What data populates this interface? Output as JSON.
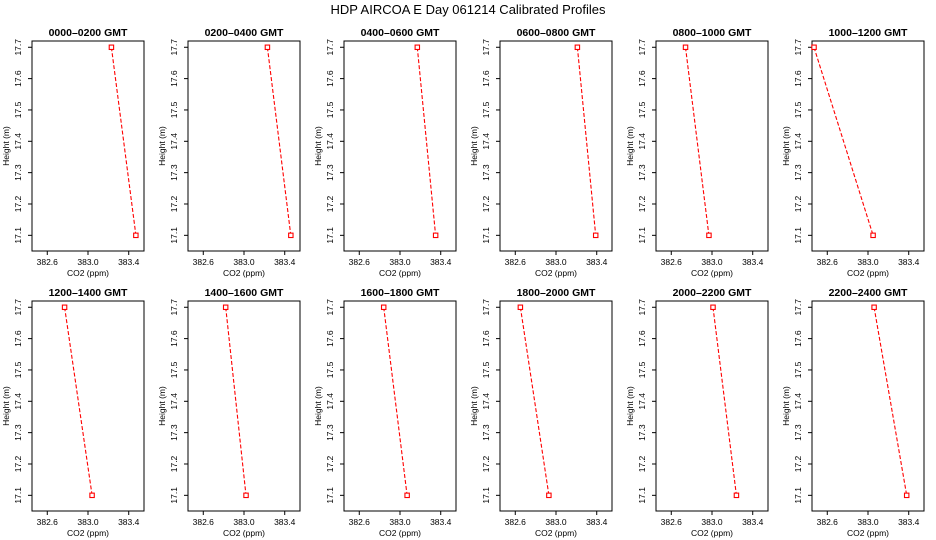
{
  "figure": {
    "title": "HDP AIRCOA E  Day 061214  Calibrated Profiles"
  },
  "colors": {
    "series": "#ff0000",
    "axis": "#000000",
    "background": "#ffffff"
  },
  "chart_data": [
    {
      "type": "line",
      "title": "0000–0200 GMT",
      "xlabel": "CO2 (ppm)",
      "ylabel": "Height (m)",
      "x": [
        383.23,
        383.47
      ],
      "y": [
        17.7,
        17.1
      ],
      "xlim": [
        382.45,
        383.55
      ],
      "ylim": [
        17.05,
        17.72
      ],
      "xticks": [
        "382.6",
        "383.0",
        "383.4"
      ],
      "yticks": [
        "17.1",
        "17.2",
        "17.3",
        "17.4",
        "17.5",
        "17.6",
        "17.7"
      ],
      "markers": "open-square",
      "grid": false
    },
    {
      "type": "line",
      "title": "0200–0400 GMT",
      "xlabel": "CO2 (ppm)",
      "ylabel": "Height (m)",
      "x": [
        383.23,
        383.46
      ],
      "y": [
        17.7,
        17.1
      ],
      "xlim": [
        382.45,
        383.55
      ],
      "ylim": [
        17.05,
        17.72
      ],
      "xticks": [
        "382.6",
        "383.0",
        "383.4"
      ],
      "yticks": [
        "17.1",
        "17.2",
        "17.3",
        "17.4",
        "17.5",
        "17.6",
        "17.7"
      ],
      "markers": "open-square",
      "grid": false
    },
    {
      "type": "line",
      "title": "0400–0600 GMT",
      "xlabel": "CO2 (ppm)",
      "ylabel": "Height (m)",
      "x": [
        383.17,
        383.35
      ],
      "y": [
        17.7,
        17.1
      ],
      "xlim": [
        382.45,
        383.55
      ],
      "ylim": [
        17.05,
        17.72
      ],
      "xticks": [
        "382.6",
        "383.0",
        "383.4"
      ],
      "yticks": [
        "17.1",
        "17.2",
        "17.3",
        "17.4",
        "17.5",
        "17.6",
        "17.7"
      ],
      "markers": "open-square",
      "grid": false
    },
    {
      "type": "line",
      "title": "0600–0800 GMT",
      "xlabel": "CO2 (ppm)",
      "ylabel": "Height (m)",
      "x": [
        383.21,
        383.39
      ],
      "y": [
        17.7,
        17.1
      ],
      "xlim": [
        382.45,
        383.55
      ],
      "ylim": [
        17.05,
        17.72
      ],
      "xticks": [
        "382.6",
        "383.0",
        "383.4"
      ],
      "yticks": [
        "17.1",
        "17.2",
        "17.3",
        "17.4",
        "17.5",
        "17.6",
        "17.7"
      ],
      "markers": "open-square",
      "grid": false
    },
    {
      "type": "line",
      "title": "0800–1000 GMT",
      "xlabel": "CO2 (ppm)",
      "ylabel": "Height (m)",
      "x": [
        382.74,
        382.97
      ],
      "y": [
        17.7,
        17.1
      ],
      "xlim": [
        382.45,
        383.55
      ],
      "ylim": [
        17.05,
        17.72
      ],
      "xticks": [
        "382.6",
        "383.0",
        "383.4"
      ],
      "yticks": [
        "17.1",
        "17.2",
        "17.3",
        "17.4",
        "17.5",
        "17.6",
        "17.7"
      ],
      "markers": "open-square",
      "grid": false
    },
    {
      "type": "line",
      "title": "1000–1200 GMT",
      "xlabel": "CO2 (ppm)",
      "ylabel": "Height (m)",
      "x": [
        382.47,
        383.05
      ],
      "y": [
        17.7,
        17.1
      ],
      "xlim": [
        382.45,
        383.55
      ],
      "ylim": [
        17.05,
        17.72
      ],
      "xticks": [
        "382.6",
        "383.0",
        "383.4"
      ],
      "yticks": [
        "17.1",
        "17.2",
        "17.3",
        "17.4",
        "17.5",
        "17.6",
        "17.7"
      ],
      "markers": "open-square",
      "grid": false
    },
    {
      "type": "line",
      "title": "1200–1400 GMT",
      "xlabel": "CO2 (ppm)",
      "ylabel": "Height (m)",
      "x": [
        382.77,
        383.04
      ],
      "y": [
        17.7,
        17.1
      ],
      "xlim": [
        382.45,
        383.55
      ],
      "ylim": [
        17.05,
        17.72
      ],
      "xticks": [
        "382.6",
        "383.0",
        "383.4"
      ],
      "yticks": [
        "17.1",
        "17.2",
        "17.3",
        "17.4",
        "17.5",
        "17.6",
        "17.7"
      ],
      "markers": "open-square",
      "grid": false
    },
    {
      "type": "line",
      "title": "1400–1600 GMT",
      "xlabel": "CO2 (ppm)",
      "ylabel": "Height (m)",
      "x": [
        382.82,
        383.02
      ],
      "y": [
        17.7,
        17.1
      ],
      "xlim": [
        382.45,
        383.55
      ],
      "ylim": [
        17.05,
        17.72
      ],
      "xticks": [
        "382.6",
        "383.0",
        "383.4"
      ],
      "yticks": [
        "17.1",
        "17.2",
        "17.3",
        "17.4",
        "17.5",
        "17.6",
        "17.7"
      ],
      "markers": "open-square",
      "grid": false
    },
    {
      "type": "line",
      "title": "1600–1800 GMT",
      "xlabel": "CO2 (ppm)",
      "ylabel": "Height (m)",
      "x": [
        382.84,
        383.07
      ],
      "y": [
        17.7,
        17.1
      ],
      "xlim": [
        382.45,
        383.55
      ],
      "ylim": [
        17.05,
        17.72
      ],
      "xticks": [
        "382.6",
        "383.0",
        "383.4"
      ],
      "yticks": [
        "17.1",
        "17.2",
        "17.3",
        "17.4",
        "17.5",
        "17.6",
        "17.7"
      ],
      "markers": "open-square",
      "grid": false
    },
    {
      "type": "line",
      "title": "1800–2000 GMT",
      "xlabel": "CO2 (ppm)",
      "ylabel": "Height (m)",
      "x": [
        382.65,
        382.93
      ],
      "y": [
        17.7,
        17.1
      ],
      "xlim": [
        382.45,
        383.55
      ],
      "ylim": [
        17.05,
        17.72
      ],
      "xticks": [
        "382.6",
        "383.0",
        "383.4"
      ],
      "yticks": [
        "17.1",
        "17.2",
        "17.3",
        "17.4",
        "17.5",
        "17.6",
        "17.7"
      ],
      "markers": "open-square",
      "grid": false
    },
    {
      "type": "line",
      "title": "2000–2200 GMT",
      "xlabel": "CO2 (ppm)",
      "ylabel": "Height (m)",
      "x": [
        383.01,
        383.24
      ],
      "y": [
        17.7,
        17.1
      ],
      "xlim": [
        382.45,
        383.55
      ],
      "ylim": [
        17.05,
        17.72
      ],
      "xticks": [
        "382.6",
        "383.0",
        "383.4"
      ],
      "yticks": [
        "17.1",
        "17.2",
        "17.3",
        "17.4",
        "17.5",
        "17.6",
        "17.7"
      ],
      "markers": "open-square",
      "grid": false
    },
    {
      "type": "line",
      "title": "2200–2400 GMT",
      "xlabel": "CO2 (ppm)",
      "ylabel": "Height (m)",
      "x": [
        383.06,
        383.38
      ],
      "y": [
        17.7,
        17.1
      ],
      "xlim": [
        382.45,
        383.55
      ],
      "ylim": [
        17.05,
        17.72
      ],
      "xticks": [
        "382.6",
        "383.0",
        "383.4"
      ],
      "yticks": [
        "17.1",
        "17.2",
        "17.3",
        "17.4",
        "17.5",
        "17.6",
        "17.7"
      ],
      "markers": "open-square",
      "grid": false
    }
  ]
}
